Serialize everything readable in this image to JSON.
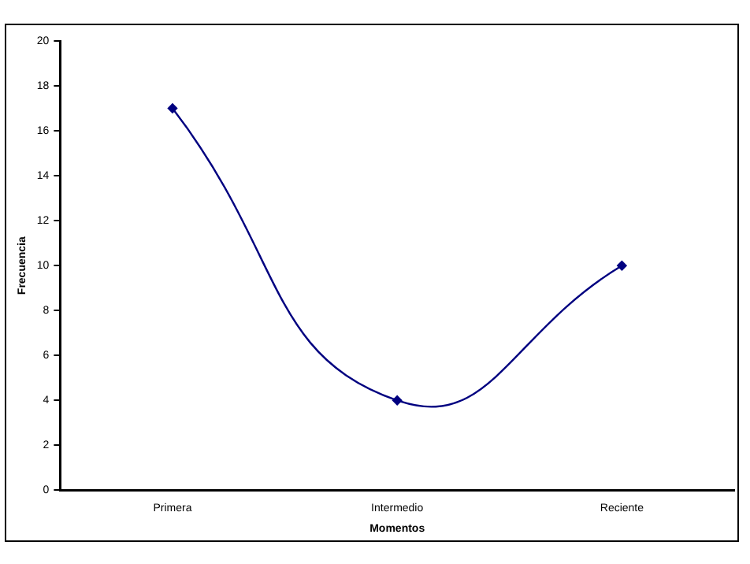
{
  "chart_data": {
    "type": "line",
    "xlabel": "Momentos",
    "ylabel": "Frecuencia",
    "categories": [
      "Primera",
      "Intermedio",
      "Reciente"
    ],
    "series": [
      {
        "color": "#000080",
        "values": [
          17,
          4,
          10
        ]
      }
    ],
    "ylim": [
      0,
      20
    ],
    "yticks": [
      0,
      2,
      4,
      6,
      8,
      10,
      12,
      14,
      16,
      18,
      20
    ],
    "grid": false,
    "legend": false,
    "marker": "diamond",
    "line_style": "solid"
  }
}
